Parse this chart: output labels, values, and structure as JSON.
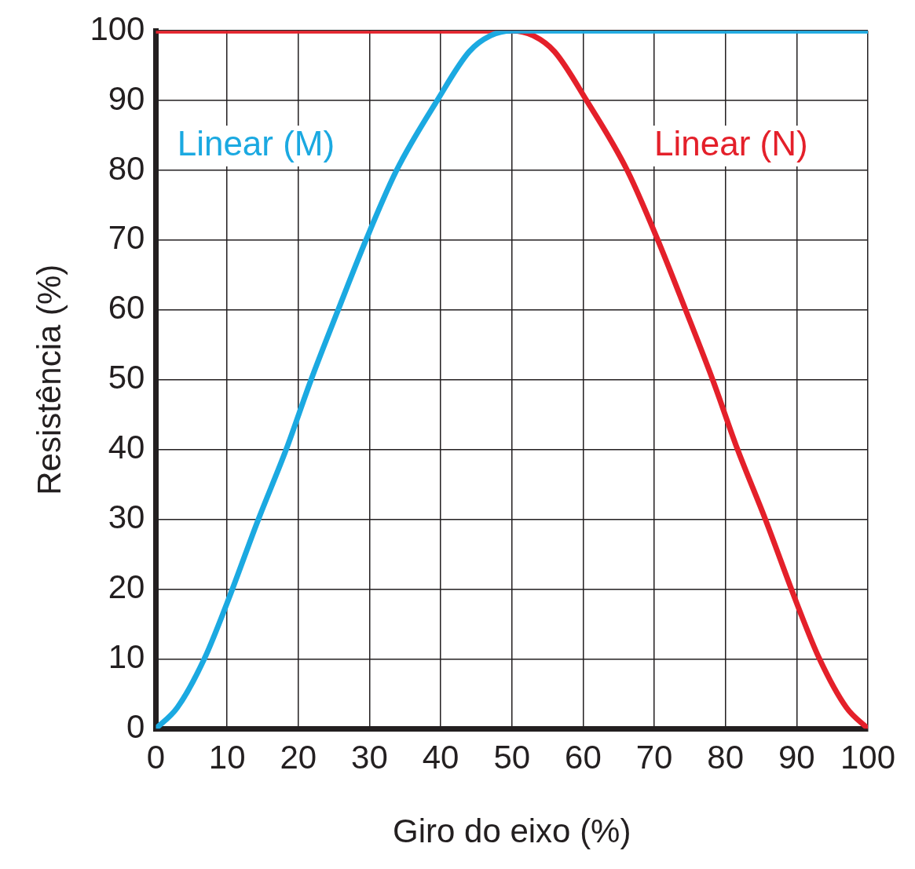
{
  "chart_data": {
    "type": "line",
    "xlabel": "Giro do eixo (%)",
    "ylabel": "Resistência (%)",
    "xlim": [
      0,
      100
    ],
    "ylim": [
      0,
      100
    ],
    "xticks": [
      0,
      10,
      20,
      30,
      40,
      50,
      60,
      70,
      80,
      90,
      100
    ],
    "yticks": [
      0,
      10,
      20,
      30,
      40,
      50,
      60,
      70,
      80,
      90,
      100
    ],
    "grid": true,
    "legend": false,
    "marker": "none",
    "line_style": "solid",
    "series": [
      {
        "name": "Linear (M)",
        "color": "#1ba9e1",
        "x": [
          0,
          3,
          6.8,
          10,
          14.4,
          18.3,
          21.8,
          25.6,
          29.5,
          33.8,
          39.5,
          44,
          47,
          50,
          100
        ],
        "values": [
          0,
          3,
          10,
          18,
          30,
          40,
          50,
          60,
          70,
          80,
          90,
          97,
          99.3,
          100,
          100
        ]
      },
      {
        "name": "Linear (N)",
        "color": "#e4202a",
        "x": [
          0,
          50,
          53,
          56,
          60.5,
          66.2,
          70.5,
          74.4,
          78.2,
          81.7,
          85.6,
          90,
          93.2,
          97,
          100
        ],
        "values": [
          100,
          100,
          99.3,
          97,
          90,
          80,
          70,
          60,
          50,
          40,
          30,
          18,
          10,
          3,
          0
        ]
      }
    ]
  }
}
